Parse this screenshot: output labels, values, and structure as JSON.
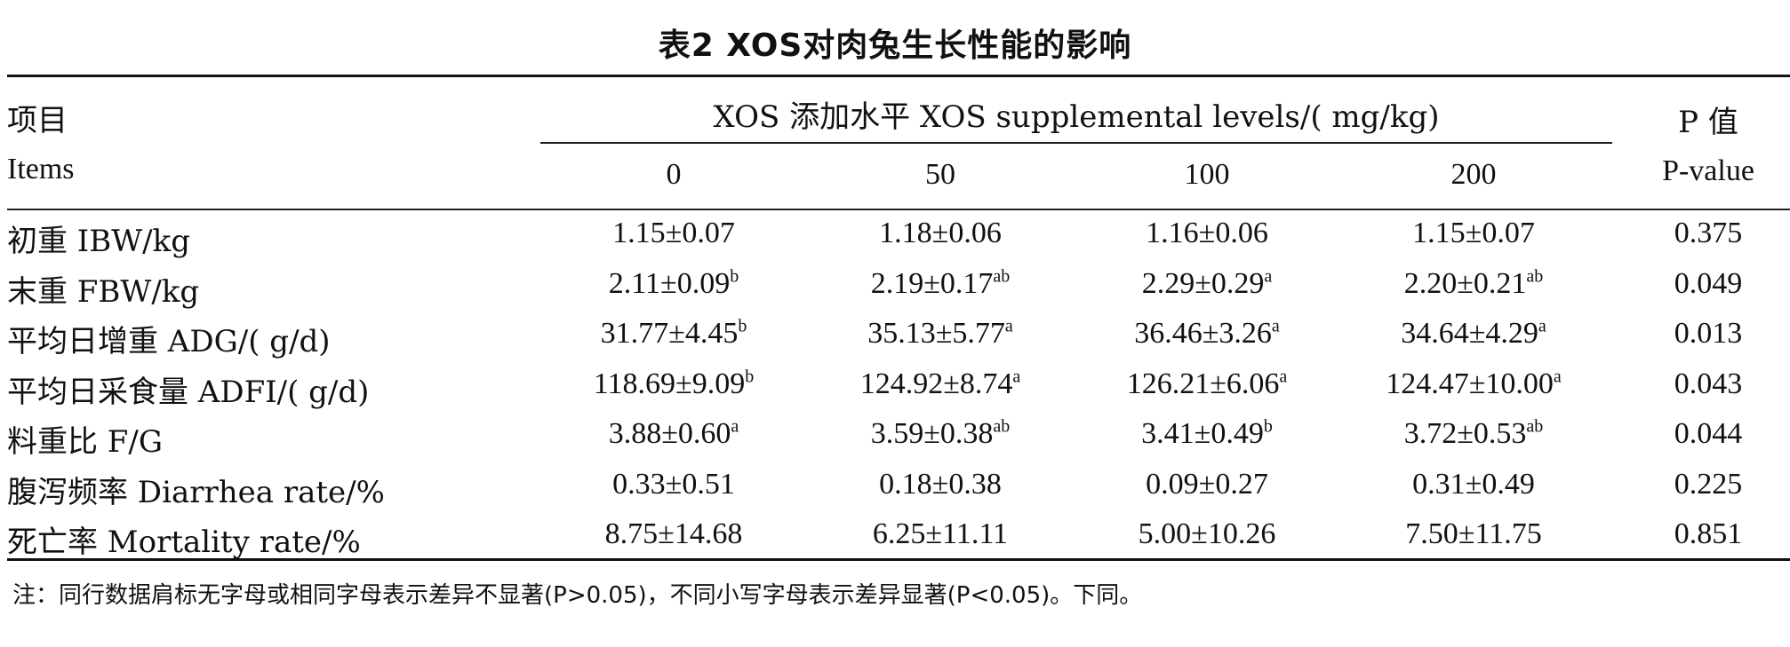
{
  "title": "表2 XOS对肉兔生长性能的影响",
  "header": {
    "item_cn": "项目",
    "item_en": "Items",
    "group": "XOS 添加水平 XOS supplemental levels/( mg/kg)",
    "levels": [
      "0",
      "50",
      "100",
      "200"
    ],
    "p_cn": "P 值",
    "p_en": "P-value"
  },
  "rows": [
    {
      "label": "初重 IBW/kg",
      "cells": [
        {
          "v": "1.15±0.07",
          "s": ""
        },
        {
          "v": "1.18±0.06",
          "s": ""
        },
        {
          "v": "1.16±0.06",
          "s": ""
        },
        {
          "v": "1.15±0.07",
          "s": ""
        }
      ],
      "p": "0.375"
    },
    {
      "label": "末重 FBW/kg",
      "cells": [
        {
          "v": "2.11±0.09",
          "s": "b"
        },
        {
          "v": "2.19±0.17",
          "s": "ab"
        },
        {
          "v": "2.29±0.29",
          "s": "a"
        },
        {
          "v": "2.20±0.21",
          "s": "ab"
        }
      ],
      "p": "0.049"
    },
    {
      "label": "平均日增重 ADG/( g/d)",
      "cells": [
        {
          "v": "31.77±4.45",
          "s": "b"
        },
        {
          "v": "35.13±5.77",
          "s": "a"
        },
        {
          "v": "36.46±3.26",
          "s": "a"
        },
        {
          "v": "34.64±4.29",
          "s": "a"
        }
      ],
      "p": "0.013"
    },
    {
      "label": "平均日采食量 ADFI/( g/d)",
      "cells": [
        {
          "v": "118.69±9.09",
          "s": "b"
        },
        {
          "v": "124.92±8.74",
          "s": "a"
        },
        {
          "v": "126.21±6.06",
          "s": "a"
        },
        {
          "v": "124.47±10.00",
          "s": "a"
        }
      ],
      "p": "0.043"
    },
    {
      "label": "料重比 F/G",
      "cells": [
        {
          "v": "3.88±0.60",
          "s": "a"
        },
        {
          "v": "3.59±0.38",
          "s": "ab"
        },
        {
          "v": "3.41±0.49",
          "s": "b"
        },
        {
          "v": "3.72±0.53",
          "s": "ab"
        }
      ],
      "p": "0.044"
    },
    {
      "label": "腹泻频率 Diarrhea rate/%",
      "cells": [
        {
          "v": "0.33±0.51",
          "s": ""
        },
        {
          "v": "0.18±0.38",
          "s": ""
        },
        {
          "v": "0.09±0.27",
          "s": ""
        },
        {
          "v": "0.31±0.49",
          "s": ""
        }
      ],
      "p": "0.225"
    },
    {
      "label": "死亡率 Mortality rate/%",
      "cells": [
        {
          "v": "8.75±14.68",
          "s": ""
        },
        {
          "v": "6.25±11.11",
          "s": ""
        },
        {
          "v": "5.00±10.26",
          "s": ""
        },
        {
          "v": "7.50±11.75",
          "s": ""
        }
      ],
      "p": "0.851"
    }
  ],
  "note": "注：同行数据肩标无字母或相同字母表示差异不显著(P>0.05)，不同小写字母表示差异显著(P<0.05)。下同。"
}
